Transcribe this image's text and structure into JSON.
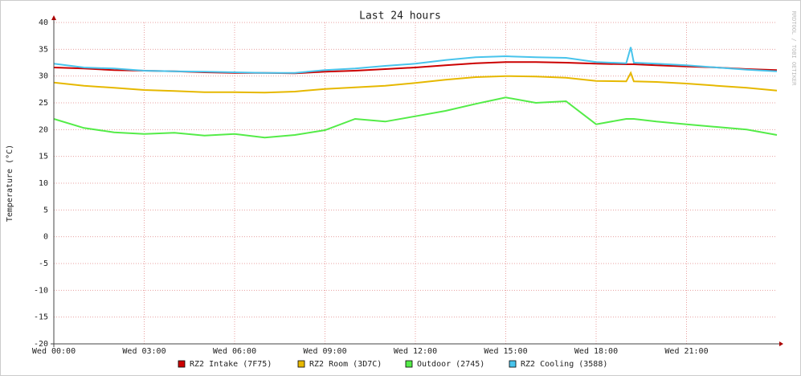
{
  "chart_data": {
    "type": "line",
    "title": "Last 24 hours",
    "y_label": "Temperature (°C)",
    "watermark": "RRDTOOL / TOBI OETIKER",
    "x": [
      0,
      1,
      2,
      3,
      4,
      5,
      6,
      7,
      8,
      9,
      10,
      11,
      12,
      13,
      14,
      15,
      16,
      17,
      18,
      19,
      19.15,
      19.25,
      20,
      21,
      22,
      23,
      24
    ],
    "xlim": [
      0,
      24
    ],
    "xticks": [
      {
        "value": 0,
        "label": "Wed 00:00"
      },
      {
        "value": 3,
        "label": "Wed 03:00"
      },
      {
        "value": 6,
        "label": "Wed 06:00"
      },
      {
        "value": 9,
        "label": "Wed 09:00"
      },
      {
        "value": 12,
        "label": "Wed 12:00"
      },
      {
        "value": 15,
        "label": "Wed 15:00"
      },
      {
        "value": 18,
        "label": "Wed 18:00"
      },
      {
        "value": 21,
        "label": "Wed 21:00"
      }
    ],
    "ylim": [
      -20,
      40
    ],
    "yticks": [
      -20,
      -15,
      -10,
      -5,
      0,
      5,
      10,
      15,
      20,
      25,
      30,
      35,
      40
    ],
    "grid": true,
    "series": [
      {
        "name": "RZ2 Intake (7F75)",
        "color": "#cc0000",
        "values": [
          31.6,
          31.4,
          31.1,
          31.0,
          30.9,
          30.7,
          30.6,
          30.6,
          30.5,
          30.8,
          31.0,
          31.3,
          31.6,
          32.0,
          32.4,
          32.6,
          32.6,
          32.5,
          32.3,
          32.2,
          32.2,
          32.2,
          32.0,
          31.8,
          31.6,
          31.3,
          31.1
        ]
      },
      {
        "name": "RZ2 Room (3D7C)",
        "color": "#e6b800",
        "values": [
          28.8,
          28.2,
          27.8,
          27.4,
          27.2,
          27.0,
          27.0,
          26.9,
          27.1,
          27.6,
          27.9,
          28.2,
          28.7,
          29.3,
          29.8,
          30.0,
          29.9,
          29.7,
          29.1,
          29.0,
          30.6,
          29.0,
          28.9,
          28.6,
          28.2,
          27.8,
          27.3
        ]
      },
      {
        "name": "Outdoor (2745)",
        "color": "#54ec48",
        "values": [
          22.0,
          20.3,
          19.5,
          19.2,
          19.4,
          18.9,
          19.2,
          18.5,
          19.0,
          19.9,
          22.0,
          21.5,
          22.5,
          23.5,
          24.8,
          26.0,
          25.0,
          25.3,
          21.0,
          22.0,
          22.0,
          22.0,
          21.5,
          21.0,
          20.5,
          20.0,
          19.0
        ]
      },
      {
        "name": "RZ2 Cooling (3588)",
        "color": "#48c4ec",
        "values": [
          32.3,
          31.6,
          31.4,
          31.0,
          30.9,
          30.8,
          30.7,
          30.6,
          30.6,
          31.1,
          31.4,
          31.9,
          32.3,
          33.0,
          33.5,
          33.7,
          33.5,
          33.4,
          32.6,
          32.4,
          35.4,
          32.5,
          32.3,
          32.0,
          31.6,
          31.2,
          30.9
        ]
      }
    ]
  }
}
